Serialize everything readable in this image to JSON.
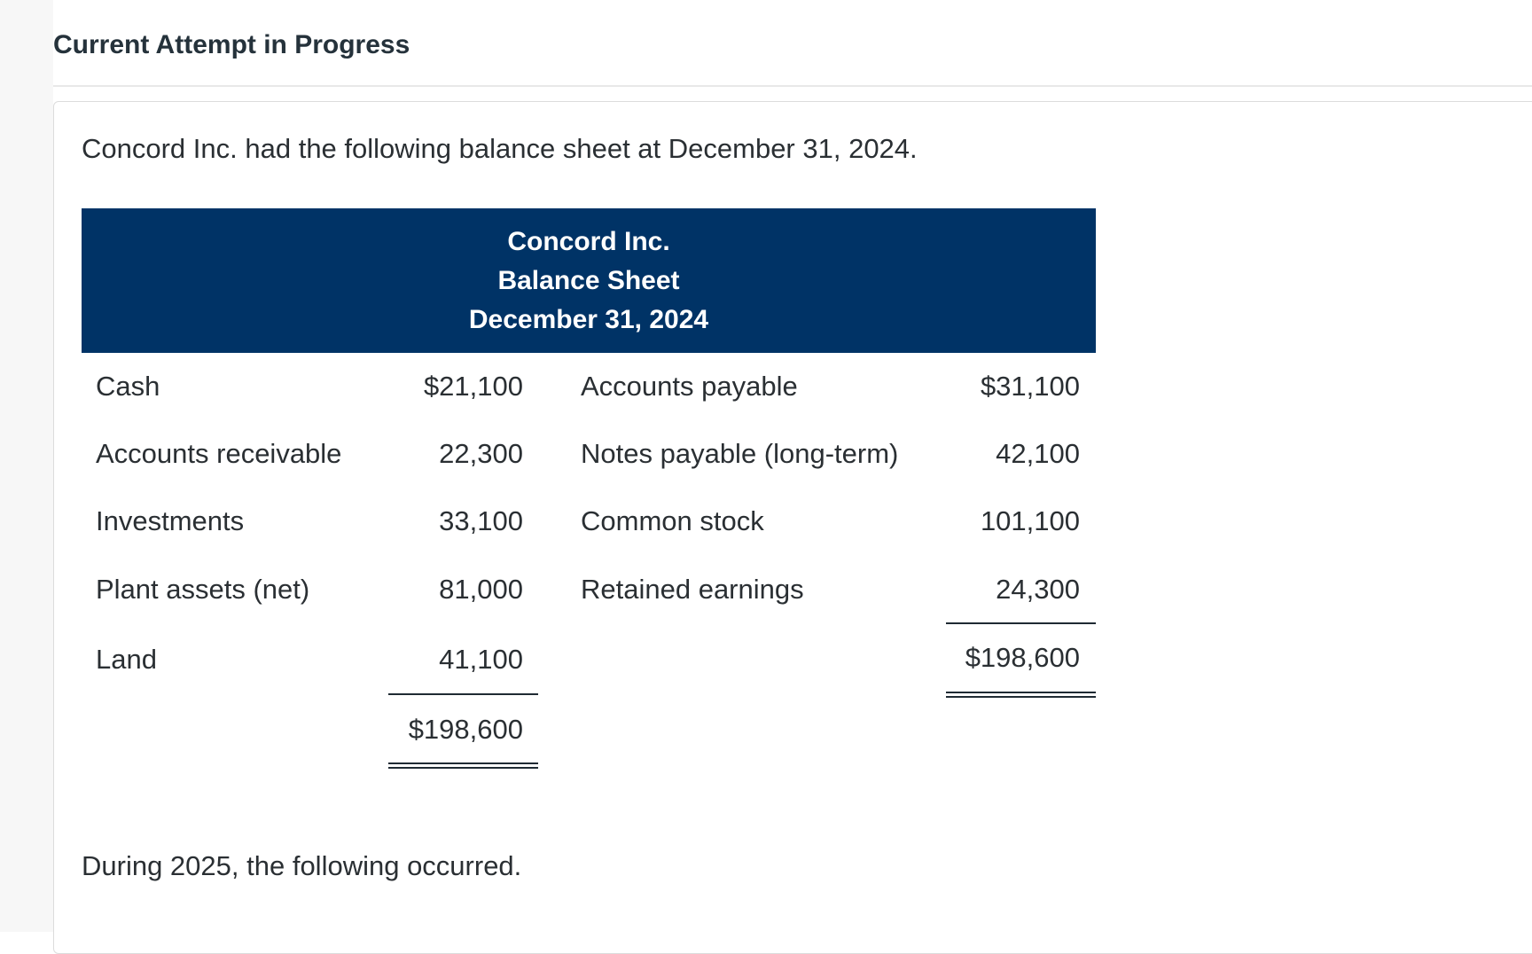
{
  "header": {
    "title": "Current Attempt in Progress"
  },
  "question": {
    "intro": "Concord Inc. had the following balance sheet at December 31, 2024.",
    "outro": "During 2025, the following occurred."
  },
  "balance_sheet": {
    "company": "Concord Inc.",
    "statement": "Balance Sheet",
    "date": "December 31, 2024",
    "assets": [
      {
        "label": "Cash",
        "amount": "$21,100"
      },
      {
        "label": "Accounts receivable",
        "amount": "22,300"
      },
      {
        "label": "Investments",
        "amount": "33,100"
      },
      {
        "label": "Plant assets (net)",
        "amount": "81,000"
      },
      {
        "label": "Land",
        "amount": "41,100"
      }
    ],
    "assets_total": "$198,600",
    "liabilities_equity": [
      {
        "label": "Accounts payable",
        "amount": "$31,100"
      },
      {
        "label": "Notes payable (long-term)",
        "amount": "42,100"
      },
      {
        "label": "Common stock",
        "amount": "101,100"
      },
      {
        "label": "Retained earnings",
        "amount": "24,300"
      }
    ],
    "liabilities_equity_total": "$198,600"
  },
  "colors": {
    "header_bg": "#003366",
    "header_text": "#ffffff"
  }
}
